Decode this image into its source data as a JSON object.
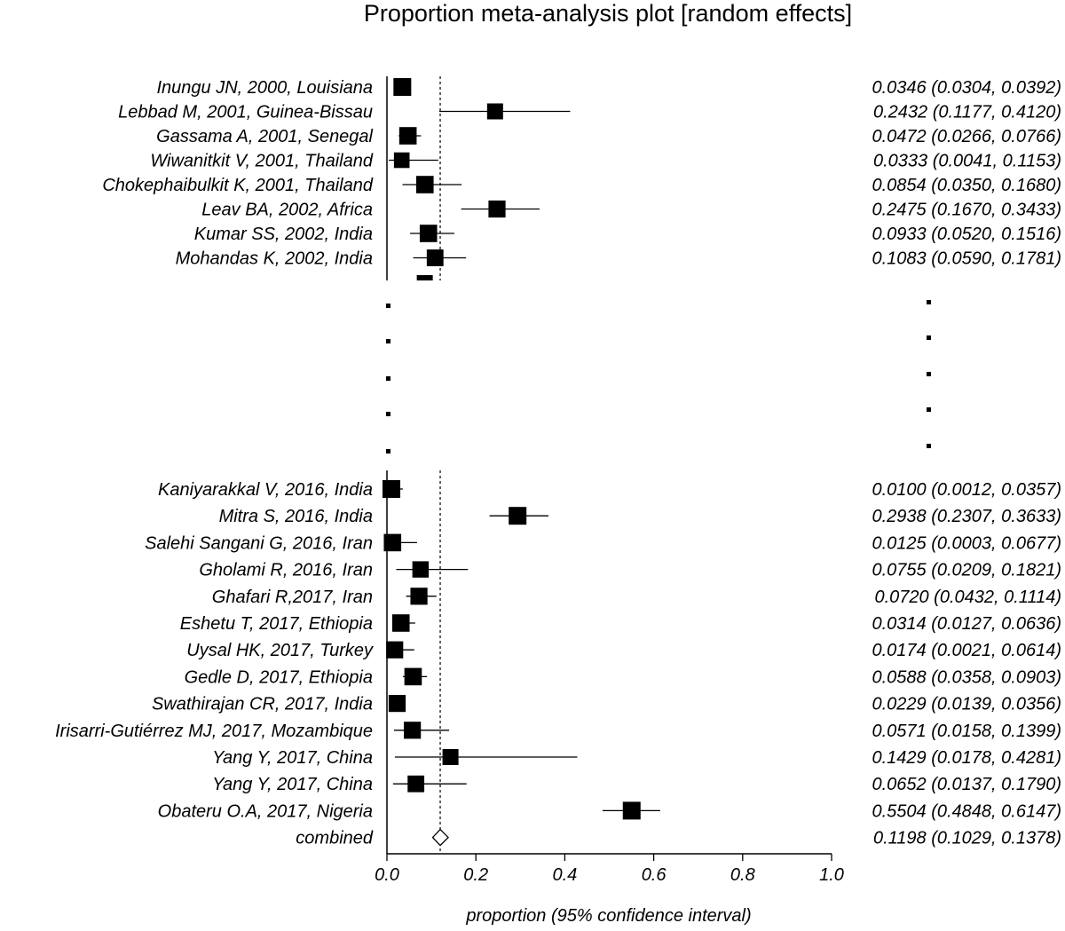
{
  "chart_data": {
    "type": "forest",
    "title": "Proportion meta-analysis plot [random effects]",
    "xlabel": "proportion (95% confidence interval)",
    "xlim": [
      0,
      1
    ],
    "xticks": [
      "0.0",
      "0.2",
      "0.4",
      "0.6",
      "0.8",
      "1.0"
    ],
    "pooled_line": 0.1198,
    "studies_top": [
      {
        "label": "Inungu JN, 2000, Louisiana",
        "est": 0.0346,
        "lo": 0.0304,
        "hi": 0.0392,
        "ci_text": "0.0346 (0.0304, 0.0392)",
        "weight": 1.0
      },
      {
        "label": "Lebbad M, 2001, Guinea-Bissau",
        "est": 0.2432,
        "lo": 0.1177,
        "hi": 0.412,
        "ci_text": "0.2432 (0.1177, 0.4120)",
        "weight": 0.75
      },
      {
        "label": "Gassama A, 2001, Senegal",
        "est": 0.0472,
        "lo": 0.0266,
        "hi": 0.0766,
        "ci_text": "0.0472 (0.0266, 0.0766)",
        "weight": 0.95
      },
      {
        "label": "Wiwanitkit V, 2001, Thailand",
        "est": 0.0333,
        "lo": 0.0041,
        "hi": 0.1153,
        "ci_text": "0.0333 (0.0041, 0.1153)",
        "weight": 0.7
      },
      {
        "label": "Chokephaibulkit K, 2001, Thailand",
        "est": 0.0854,
        "lo": 0.035,
        "hi": 0.168,
        "ci_text": "0.0854 (0.0350, 0.1680)",
        "weight": 0.95
      },
      {
        "label": "Leav BA, 2002, Africa",
        "est": 0.2475,
        "lo": 0.167,
        "hi": 0.3433,
        "ci_text": "0.2475 (0.1670, 0.3433)",
        "weight": 0.9
      },
      {
        "label": "Kumar SS, 2002, India",
        "est": 0.0933,
        "lo": 0.052,
        "hi": 0.1516,
        "ci_text": "0.0933 (0.0520, 0.1516)",
        "weight": 0.95
      },
      {
        "label": "Mohandas K, 2002, India",
        "est": 0.1083,
        "lo": 0.059,
        "hi": 0.1781,
        "ci_text": "0.1083 (0.0590, 0.1781)",
        "weight": 0.85
      }
    ],
    "studies_bottom": [
      {
        "label": "Kaniyarakkal V, 2016, India",
        "est": 0.01,
        "lo": 0.0012,
        "hi": 0.0357,
        "ci_text": "0.0100 (0.0012, 0.0357)",
        "weight": 1.0
      },
      {
        "label": "Mitra S, 2016, India",
        "est": 0.2938,
        "lo": 0.2307,
        "hi": 0.3633,
        "ci_text": "0.2938 (0.2307, 0.3633)",
        "weight": 1.0
      },
      {
        "label": "Salehi Sangani G, 2016, Iran",
        "est": 0.0125,
        "lo": 0.0003,
        "hi": 0.0677,
        "ci_text": "0.0125 (0.0003, 0.0677)",
        "weight": 0.95
      },
      {
        "label": "Gholami R, 2016, Iran",
        "est": 0.0755,
        "lo": 0.0209,
        "hi": 0.1821,
        "ci_text": "0.0755 (0.0209, 0.1821)",
        "weight": 0.8
      },
      {
        "label": "Ghafari R,2017, Iran",
        "est": 0.072,
        "lo": 0.0432,
        "hi": 0.1114,
        "ci_text": "0.0720 (0.0432, 0.1114)",
        "weight": 0.9
      },
      {
        "label": "Eshetu T, 2017, Ethiopia",
        "est": 0.0314,
        "lo": 0.0127,
        "hi": 0.0636,
        "ci_text": "0.0314 (0.0127, 0.0636)",
        "weight": 0.95
      },
      {
        "label": "Uysal HK, 2017, Turkey",
        "est": 0.0174,
        "lo": 0.0021,
        "hi": 0.0614,
        "ci_text": "0.0174 (0.0021, 0.0614)",
        "weight": 0.9
      },
      {
        "label": "Gedle D, 2017, Ethiopia",
        "est": 0.0588,
        "lo": 0.0358,
        "hi": 0.0903,
        "ci_text": "0.0588 (0.0358, 0.0903)",
        "weight": 0.95
      },
      {
        "label": "Swathirajan CR, 2017, India",
        "est": 0.0229,
        "lo": 0.0139,
        "hi": 0.0356,
        "ci_text": "0.0229 (0.0139, 0.0356)",
        "weight": 0.9
      },
      {
        "label": "Irisarri-Gutiérrez MJ, 2017, Mozambique",
        "est": 0.0571,
        "lo": 0.0158,
        "hi": 0.1399,
        "ci_text": "0.0571 (0.0158, 0.1399)",
        "weight": 0.9
      },
      {
        "label": "Yang Y, 2017, China",
        "est": 0.1429,
        "lo": 0.0178,
        "hi": 0.4281,
        "ci_text": "0.1429 (0.0178, 0.4281)",
        "weight": 0.75
      },
      {
        "label": "Yang Y, 2017, China",
        "est": 0.0652,
        "lo": 0.0137,
        "hi": 0.179,
        "ci_text": "0.0652 (0.0137, 0.1790)",
        "weight": 0.85
      },
      {
        "label": "Obateru O.A, 2017, Nigeria",
        "est": 0.5504,
        "lo": 0.4848,
        "hi": 0.6147,
        "ci_text": "0.5504 (0.4848, 0.6147)",
        "weight": 1.0
      }
    ],
    "combined": {
      "label": "combined",
      "est": 0.1198,
      "lo": 0.1029,
      "hi": 0.1378,
      "ci_text": "0.1198 (0.1029, 0.1378)"
    }
  }
}
